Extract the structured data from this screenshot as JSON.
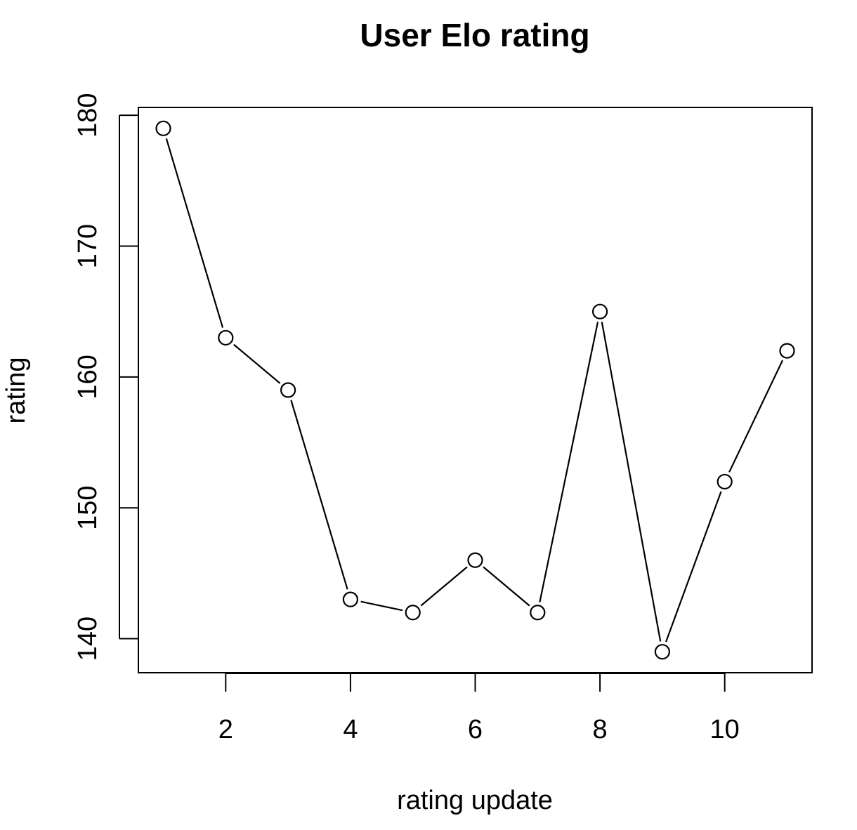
{
  "chart_data": {
    "type": "line",
    "title": "User Elo rating",
    "xlabel": "rating update",
    "ylabel": "rating",
    "x": [
      1,
      2,
      3,
      4,
      5,
      6,
      7,
      8,
      9,
      10,
      11
    ],
    "y": [
      179,
      163,
      159,
      143,
      142,
      146,
      142,
      165,
      139,
      152,
      162
    ],
    "xticks": [
      2,
      4,
      6,
      8,
      10
    ],
    "yticks": [
      140,
      150,
      160,
      170,
      180
    ],
    "xlim": [
      0.6,
      11.4
    ],
    "ylim": [
      137.4,
      180.6
    ],
    "marker": "open-circle",
    "grid": false,
    "legend": "none",
    "colors": {
      "line": "#000000",
      "marker_fill": "#ffffff",
      "axis": "#000000"
    }
  }
}
